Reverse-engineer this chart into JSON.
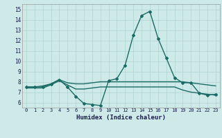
{
  "xlabel": "Humidex (Indice chaleur)",
  "xlim": [
    -0.5,
    23.5
  ],
  "ylim": [
    5.5,
    15.5
  ],
  "yticks": [
    6,
    7,
    8,
    9,
    10,
    11,
    12,
    13,
    14,
    15
  ],
  "xticks": [
    0,
    1,
    2,
    3,
    4,
    5,
    6,
    7,
    8,
    9,
    10,
    11,
    12,
    13,
    14,
    15,
    16,
    17,
    18,
    19,
    20,
    21,
    22,
    23
  ],
  "bg_color": "#ceeae8",
  "grid_color": "#aed4d0",
  "line_color": "#1a6b65",
  "lines": [
    {
      "x": [
        0,
        1,
        2,
        3,
        4,
        5,
        6,
        7,
        8,
        9,
        10,
        11,
        12,
        13,
        14,
        15,
        16,
        17,
        18,
        19,
        20,
        21,
        22,
        23
      ],
      "y": [
        7.5,
        7.5,
        7.6,
        7.8,
        8.2,
        7.9,
        7.8,
        7.8,
        7.9,
        8.0,
        8.0,
        8.0,
        8.0,
        8.0,
        8.0,
        8.0,
        8.0,
        8.0,
        8.0,
        8.0,
        7.9,
        7.8,
        7.7,
        7.6
      ],
      "marker": false,
      "lw": 1.0
    },
    {
      "x": [
        0,
        1,
        2,
        3,
        4,
        5,
        6,
        7,
        8,
        9,
        10,
        11,
        12,
        13,
        14,
        15,
        16,
        17,
        18,
        19,
        20,
        21,
        22,
        23
      ],
      "y": [
        7.4,
        7.4,
        7.4,
        7.7,
        8.1,
        7.7,
        7.3,
        7.3,
        7.4,
        7.5,
        7.5,
        7.5,
        7.5,
        7.5,
        7.5,
        7.5,
        7.5,
        7.5,
        7.5,
        7.2,
        7.0,
        6.9,
        6.8,
        6.7
      ],
      "marker": false,
      "lw": 1.0
    },
    {
      "x": [
        0,
        1,
        2,
        3,
        4,
        5,
        6,
        7,
        8,
        9,
        10,
        11,
        12,
        13,
        14,
        15,
        16,
        17,
        18,
        19,
        20,
        21,
        22,
        23
      ],
      "y": [
        7.5,
        7.5,
        7.5,
        7.8,
        8.2,
        7.5,
        6.6,
        5.9,
        5.8,
        5.7,
        8.1,
        8.3,
        9.6,
        12.5,
        14.4,
        14.8,
        12.2,
        10.3,
        8.4,
        7.9,
        7.9,
        6.9,
        6.7,
        6.8
      ],
      "marker": true,
      "lw": 1.0
    }
  ]
}
